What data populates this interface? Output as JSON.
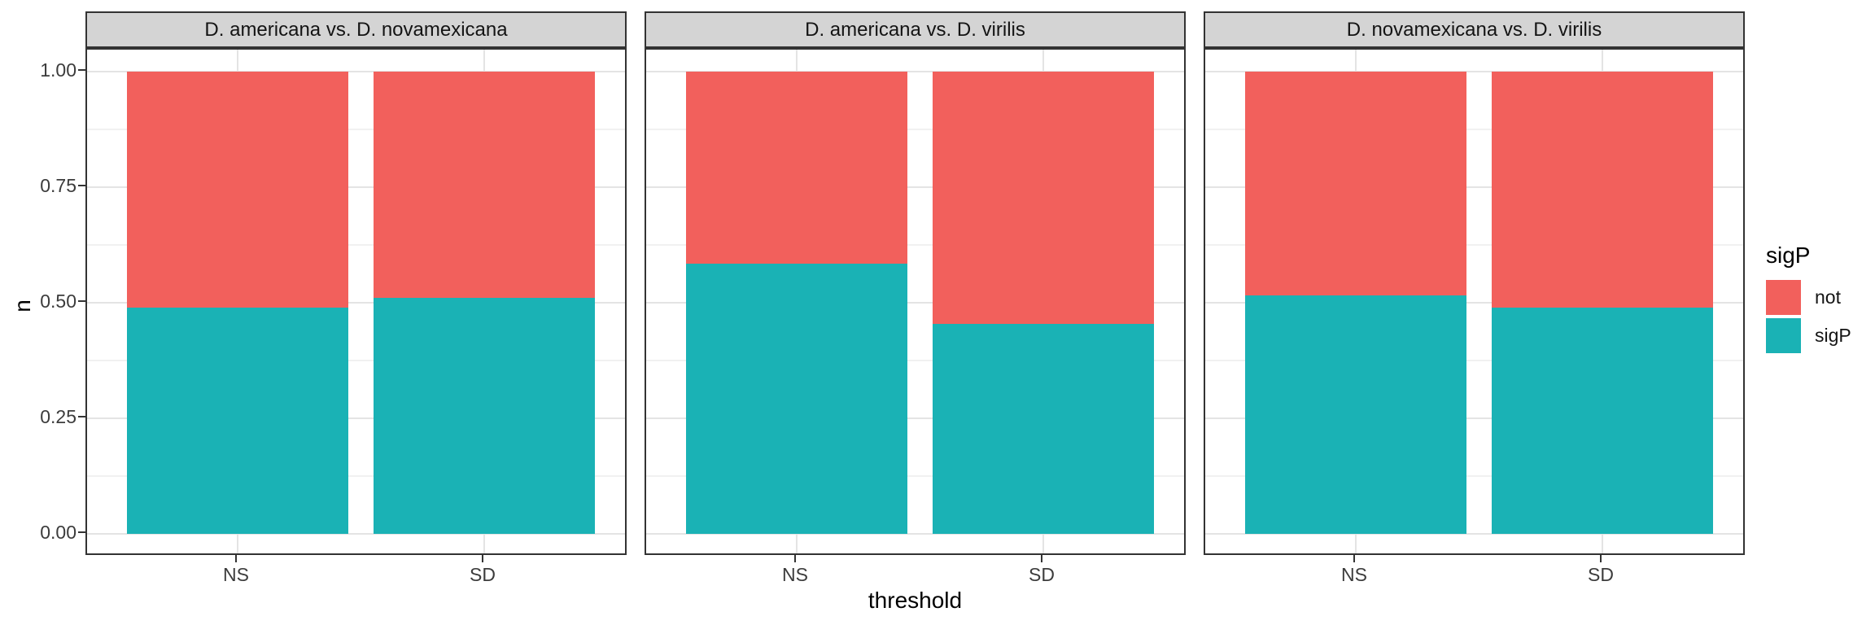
{
  "chart_data": {
    "type": "bar",
    "stacked": true,
    "proportion": true,
    "title": "",
    "xlabel": "threshold",
    "ylabel": "n",
    "ylim": [
      0,
      1
    ],
    "y_ticks": [
      0,
      0.25,
      0.5,
      0.75,
      1
    ],
    "y_tick_labels": [
      "0.00",
      "0.25",
      "0.50",
      "0.75",
      "1.00"
    ],
    "categories": [
      "NS",
      "SD"
    ],
    "grid": true,
    "legend_position": "right",
    "facets": [
      {
        "title": "D. americana vs. D. novamexicana",
        "series": [
          {
            "name": "sigP",
            "values": [
              0.49,
              0.51
            ]
          },
          {
            "name": "not",
            "values": [
              0.51,
              0.49
            ]
          }
        ]
      },
      {
        "title": "D. americana vs. D. virilis",
        "series": [
          {
            "name": "sigP",
            "values": [
              0.585,
              0.455
            ]
          },
          {
            "name": "not",
            "values": [
              0.415,
              0.545
            ]
          }
        ]
      },
      {
        "title": "D. novamexicana vs. D. virilis",
        "series": [
          {
            "name": "sigP",
            "values": [
              0.515,
              0.49
            ]
          },
          {
            "name": "not",
            "values": [
              0.485,
              0.51
            ]
          }
        ]
      }
    ],
    "legend": {
      "title": "sigP",
      "entries": [
        {
          "label": "not",
          "color": "#F2605C"
        },
        {
          "label": "sigP",
          "color": "#1AB2B5"
        }
      ]
    }
  },
  "theme": {
    "background": "#FFFFFF",
    "strip_background": "#D4D4D4",
    "panel_border": "#333333",
    "grid_major": "#E4E4E4",
    "grid_minor": "#F1F1F1",
    "tick_color": "#333333",
    "tick_label_color": "#3C3C3C",
    "text_color": "#000000"
  }
}
